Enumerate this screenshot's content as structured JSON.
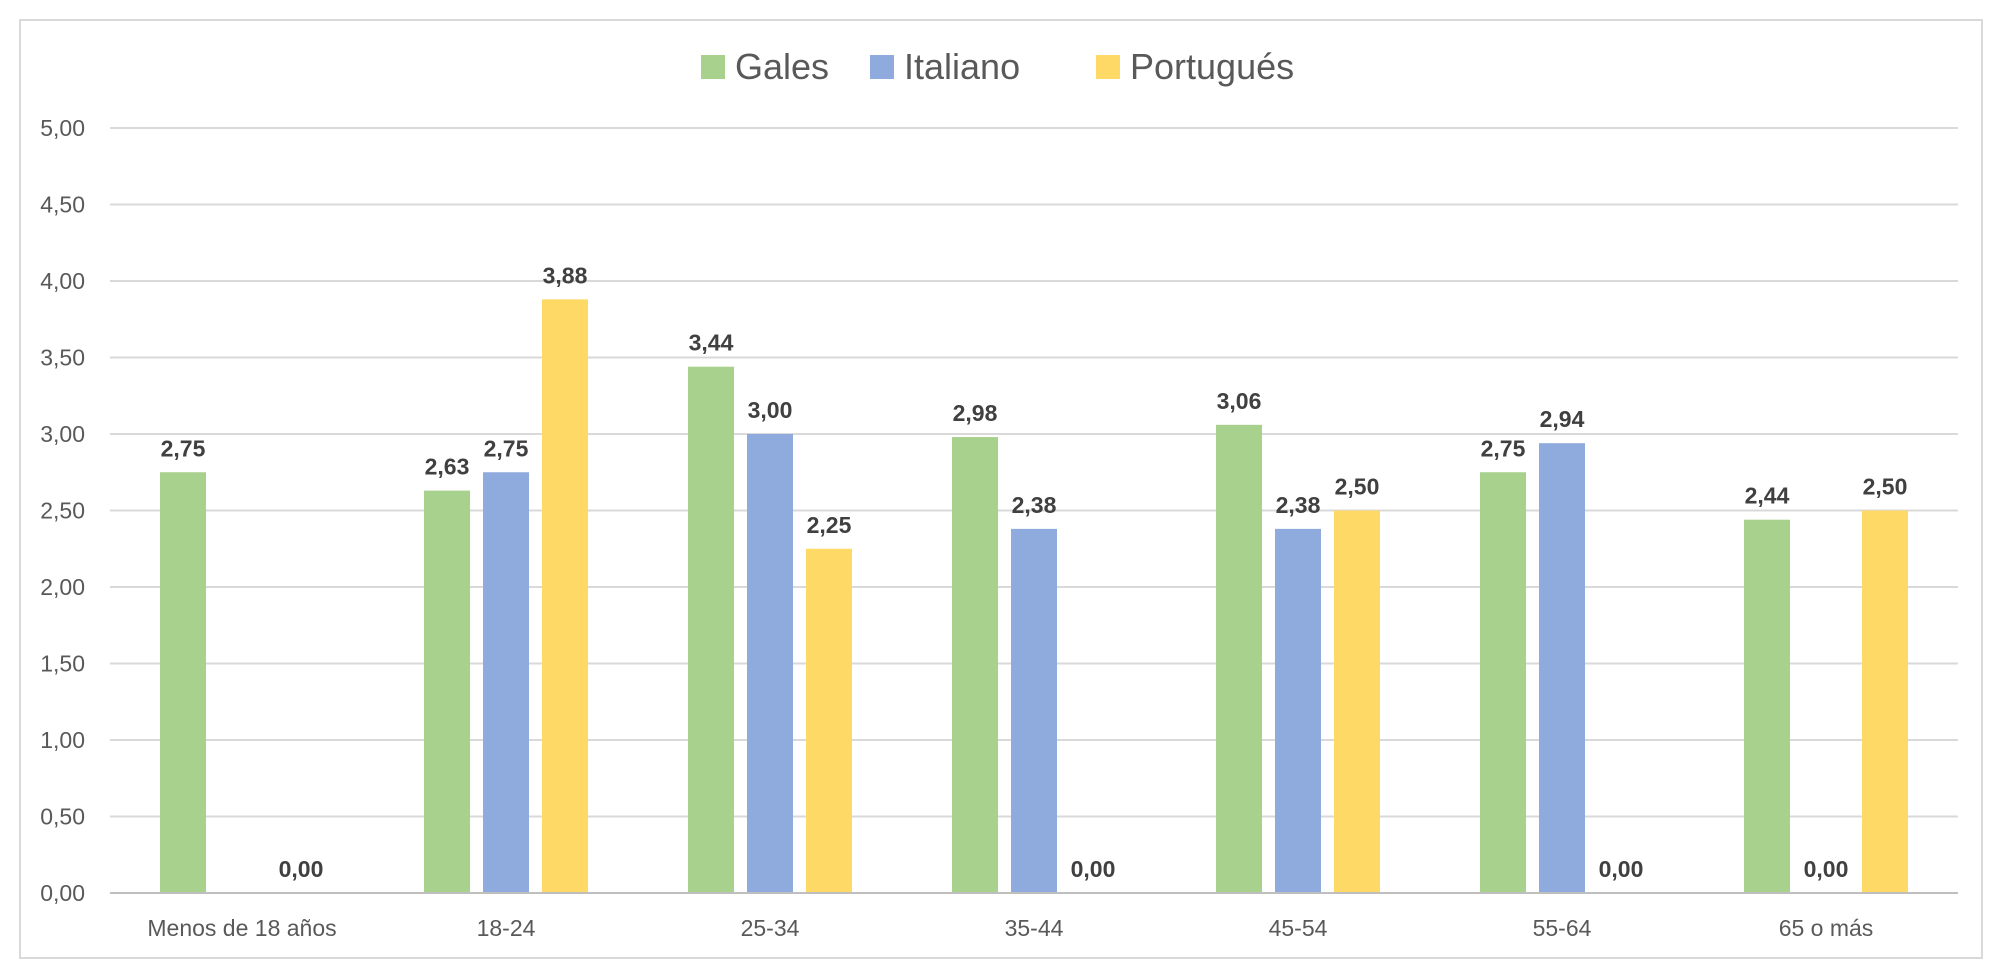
{
  "chart_data": {
    "type": "bar",
    "categories": [
      "Menos de 18 años",
      "18-24",
      "25-34",
      "35-44",
      "45-54",
      "55-64",
      "65 o más"
    ],
    "series": [
      {
        "name": "Gales",
        "color": "#A9D18E",
        "values": [
          2.75,
          2.63,
          3.44,
          2.98,
          3.06,
          2.75,
          2.44
        ]
      },
      {
        "name": "Italiano",
        "color": "#8FAADC",
        "values": [
          0,
          2.75,
          3.0,
          2.38,
          2.38,
          2.94,
          0
        ]
      },
      {
        "name": "Portugués",
        "color": "#FFD966",
        "values": [
          0,
          3.88,
          2.25,
          0,
          2.5,
          0,
          2.5
        ]
      }
    ],
    "data_labels": [
      [
        "2,75",
        "2,63",
        "3,44",
        "2,98",
        "3,06",
        "2,75",
        "2,44"
      ],
      [
        "",
        "2,75",
        "3,00",
        "2,38",
        "2,38",
        "2,94",
        "0,00"
      ],
      [
        "0,00",
        "3,88",
        "2,25",
        "0,00",
        "2,50",
        "0,00",
        "2,50"
      ]
    ],
    "ylim": [
      0,
      5
    ],
    "yticks": [
      "0,00",
      "0,50",
      "1,00",
      "1,50",
      "2,00",
      "2,50",
      "3,00",
      "3,50",
      "4,00",
      "4,50",
      "5,00"
    ],
    "grid": true,
    "legend_position": "top"
  }
}
